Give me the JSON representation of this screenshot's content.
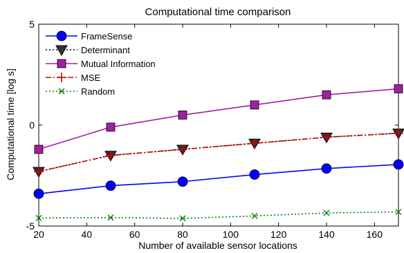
{
  "chart_data": {
    "type": "line",
    "title": "Computational time comparison",
    "xlabel": "Number of available sensor locations",
    "ylabel": "Computational time [log s]",
    "xlim": [
      20,
      170
    ],
    "ylim": [
      -5,
      5
    ],
    "xticks": [
      20,
      40,
      60,
      80,
      100,
      120,
      140,
      160
    ],
    "yticks": [
      -5,
      0,
      5
    ],
    "x": [
      20,
      50,
      80,
      110,
      140,
      170
    ],
    "grid": false,
    "legend": "top-left",
    "series": [
      {
        "name": "FrameSense",
        "color": "#0000ff",
        "marker": "circle",
        "dash": "solid",
        "values": [
          -3.4,
          -3.0,
          -2.8,
          -2.45,
          -2.15,
          -1.95
        ]
      },
      {
        "name": "Determinant",
        "color": "#000000",
        "marker": "triangle-down",
        "dash": "dotted",
        "values": [
          -2.3,
          -1.5,
          -1.2,
          -0.9,
          -0.6,
          -0.4
        ]
      },
      {
        "name": "Mutual Information",
        "color": "#a020a0",
        "marker": "square",
        "dash": "solid",
        "values": [
          -1.2,
          -0.1,
          0.5,
          1.0,
          1.5,
          1.8
        ]
      },
      {
        "name": "MSE",
        "color": "#cc0000",
        "marker": "plus",
        "dash": "dashdot",
        "values": [
          -2.3,
          -1.5,
          -1.2,
          -0.9,
          -0.6,
          -0.4
        ]
      },
      {
        "name": "Random",
        "color": "#008000",
        "marker": "x",
        "dash": "dotted",
        "values": [
          -4.6,
          -4.58,
          -4.62,
          -4.5,
          -4.35,
          -4.3
        ]
      }
    ]
  }
}
